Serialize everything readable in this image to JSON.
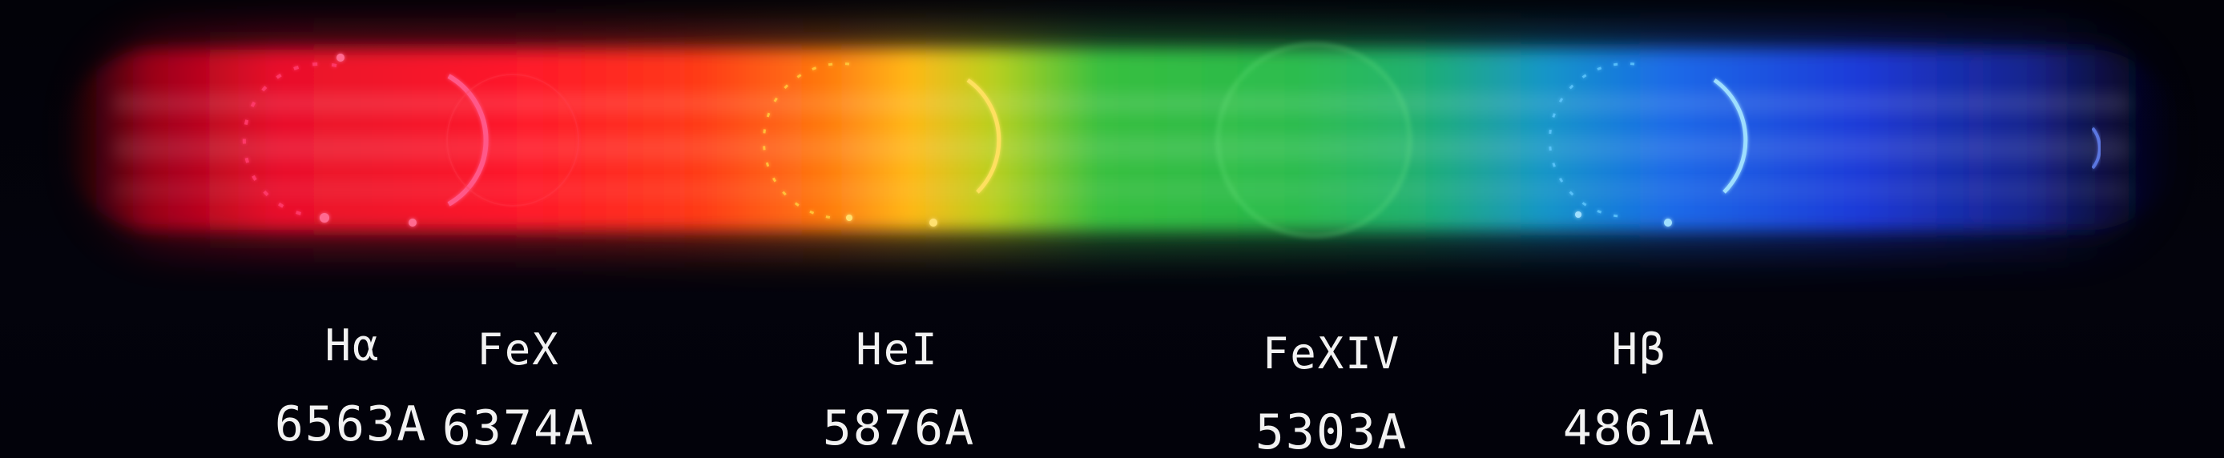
{
  "spectral_lines": [
    {
      "name": "Hα",
      "wavelength": "6563A",
      "color": "#ff2a55"
    },
    {
      "name": "FeX",
      "wavelength": "6374A",
      "color": "#ff1e2e"
    },
    {
      "name": "HeI",
      "wavelength": "5876A",
      "color": "#ffb020"
    },
    {
      "name": "FeXIV",
      "wavelength": "5303A",
      "color": "#38c850"
    },
    {
      "name": "Hβ",
      "wavelength": "4861A",
      "color": "#40b8ff"
    }
  ],
  "colors": {
    "background": "#000000",
    "label_text": "#f2f2f2"
  }
}
